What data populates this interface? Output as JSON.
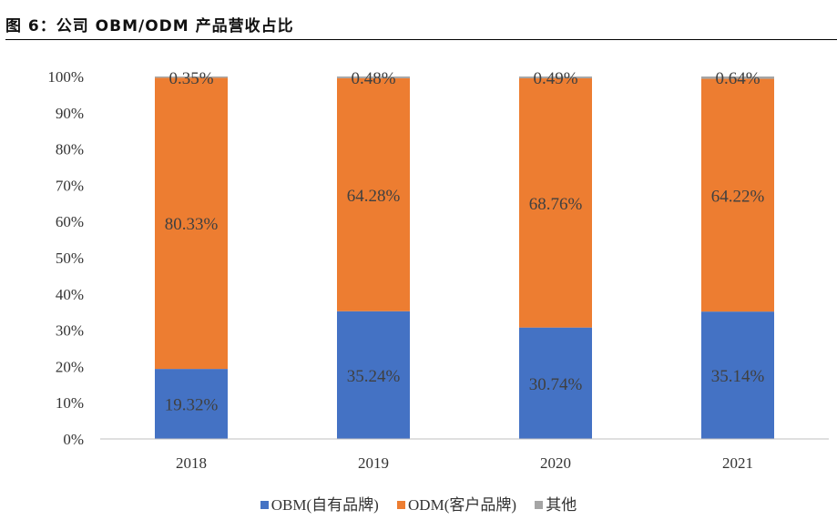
{
  "title": "图 6：公司 OBM/ODM 产品营收占比",
  "chart_data": {
    "type": "bar",
    "stacked": true,
    "categories": [
      "2018",
      "2019",
      "2020",
      "2021"
    ],
    "series": [
      {
        "name": "OBM(自有品牌)",
        "color": "#4472C4",
        "values": [
          19.32,
          35.24,
          30.74,
          35.14
        ],
        "labels": [
          "19.32%",
          "35.24%",
          "30.74%",
          "35.14%"
        ]
      },
      {
        "name": "ODM(客户品牌)",
        "color": "#ED7D31",
        "values": [
          80.33,
          64.28,
          68.76,
          64.22
        ],
        "labels": [
          "80.33%",
          "64.28%",
          "68.76%",
          "64.22%"
        ]
      },
      {
        "name": "其他",
        "color": "#A5A5A5",
        "values": [
          0.35,
          0.48,
          0.49,
          0.64
        ],
        "labels": [
          "0.35%",
          "0.48%",
          "0.49%",
          "0.64%"
        ]
      }
    ],
    "ylim": [
      0,
      100
    ],
    "yticks": [
      "0%",
      "10%",
      "20%",
      "30%",
      "40%",
      "50%",
      "60%",
      "70%",
      "80%",
      "90%",
      "100%"
    ],
    "grid": false,
    "legend": "bottom"
  }
}
